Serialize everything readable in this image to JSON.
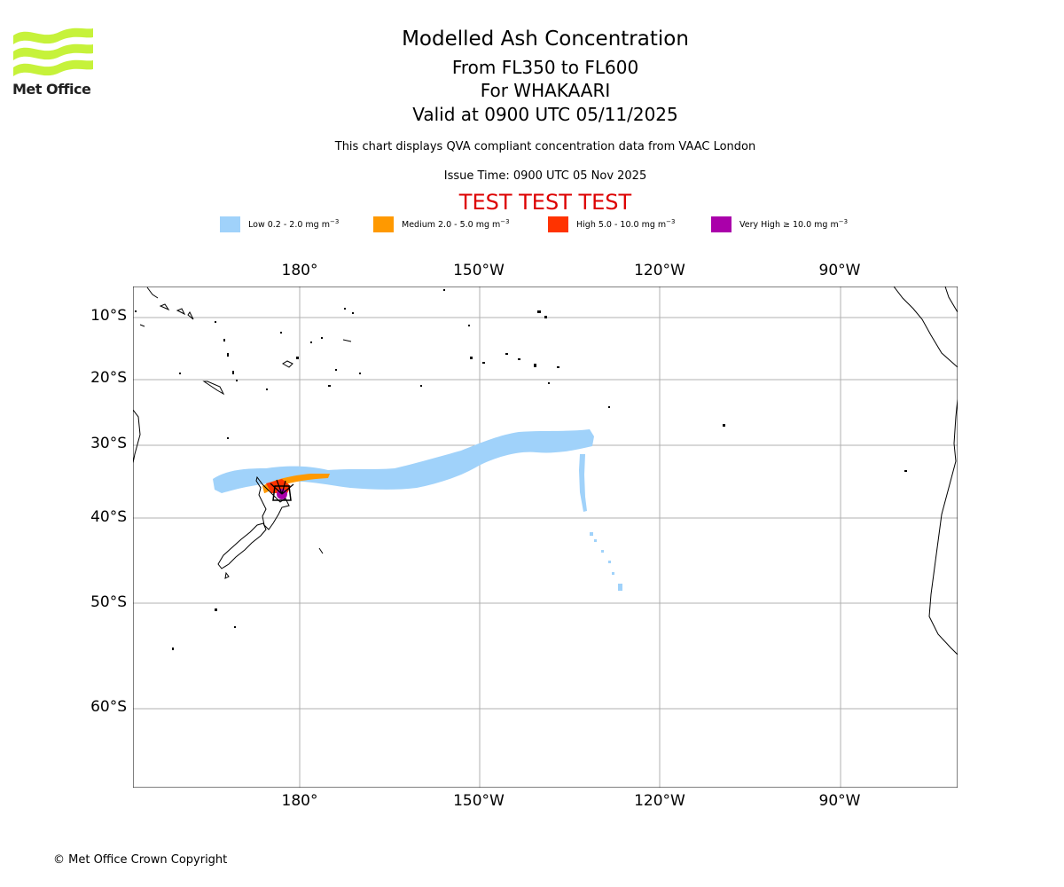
{
  "logo": {
    "text": "Met Office",
    "icon": "met-office-wave-logo",
    "color": "#c6f23a"
  },
  "title": {
    "main": "Modelled Ash Concentration",
    "levels": "From FL350 to FL600",
    "volcano": "For WHAKAARI",
    "valid": "Valid at 0900 UTC 05/11/2025"
  },
  "info": {
    "qva": "This chart displays QVA compliant concentration data from VAAC London",
    "issue_time": "Issue Time: 0900 UTC 05 Nov 2025"
  },
  "test_banner": "TEST TEST TEST",
  "legend": [
    {
      "label": "Low 0.2 - 2.0 mg m",
      "exp": "−3",
      "color": "#a0d2fa"
    },
    {
      "label": "Medium 2.0 - 5.0 mg m",
      "exp": "−3",
      "color": "#ff9900"
    },
    {
      "label": "High 5.0 - 10.0 mg m",
      "exp": "−3",
      "color": "#ff3300"
    },
    {
      "label": "Very High  ≥  10.0 mg m",
      "exp": "−3",
      "color": "#aa00aa"
    }
  ],
  "map": {
    "projection": "Mercator",
    "lon_range": [
      -207.5,
      -69
    ],
    "lat_range": [
      -67,
      -5
    ],
    "lon_ticks": [
      {
        "value": -180,
        "label": "180°"
      },
      {
        "value": -150,
        "label": "150°W"
      },
      {
        "value": -120,
        "label": "120°W"
      },
      {
        "value": -90,
        "label": "90°W"
      }
    ],
    "lat_ticks": [
      {
        "value": -10,
        "label": "10°S"
      },
      {
        "value": -20,
        "label": "20°S"
      },
      {
        "value": -30,
        "label": "30°S"
      },
      {
        "value": -40,
        "label": "40°S"
      },
      {
        "value": -50,
        "label": "50°S"
      },
      {
        "value": -60,
        "label": "60°S"
      }
    ],
    "volcano_location": {
      "name": "WHAKAARI",
      "lon": 177.2,
      "lat": -37.5
    }
  },
  "copyright": "© Met Office Crown Copyright"
}
